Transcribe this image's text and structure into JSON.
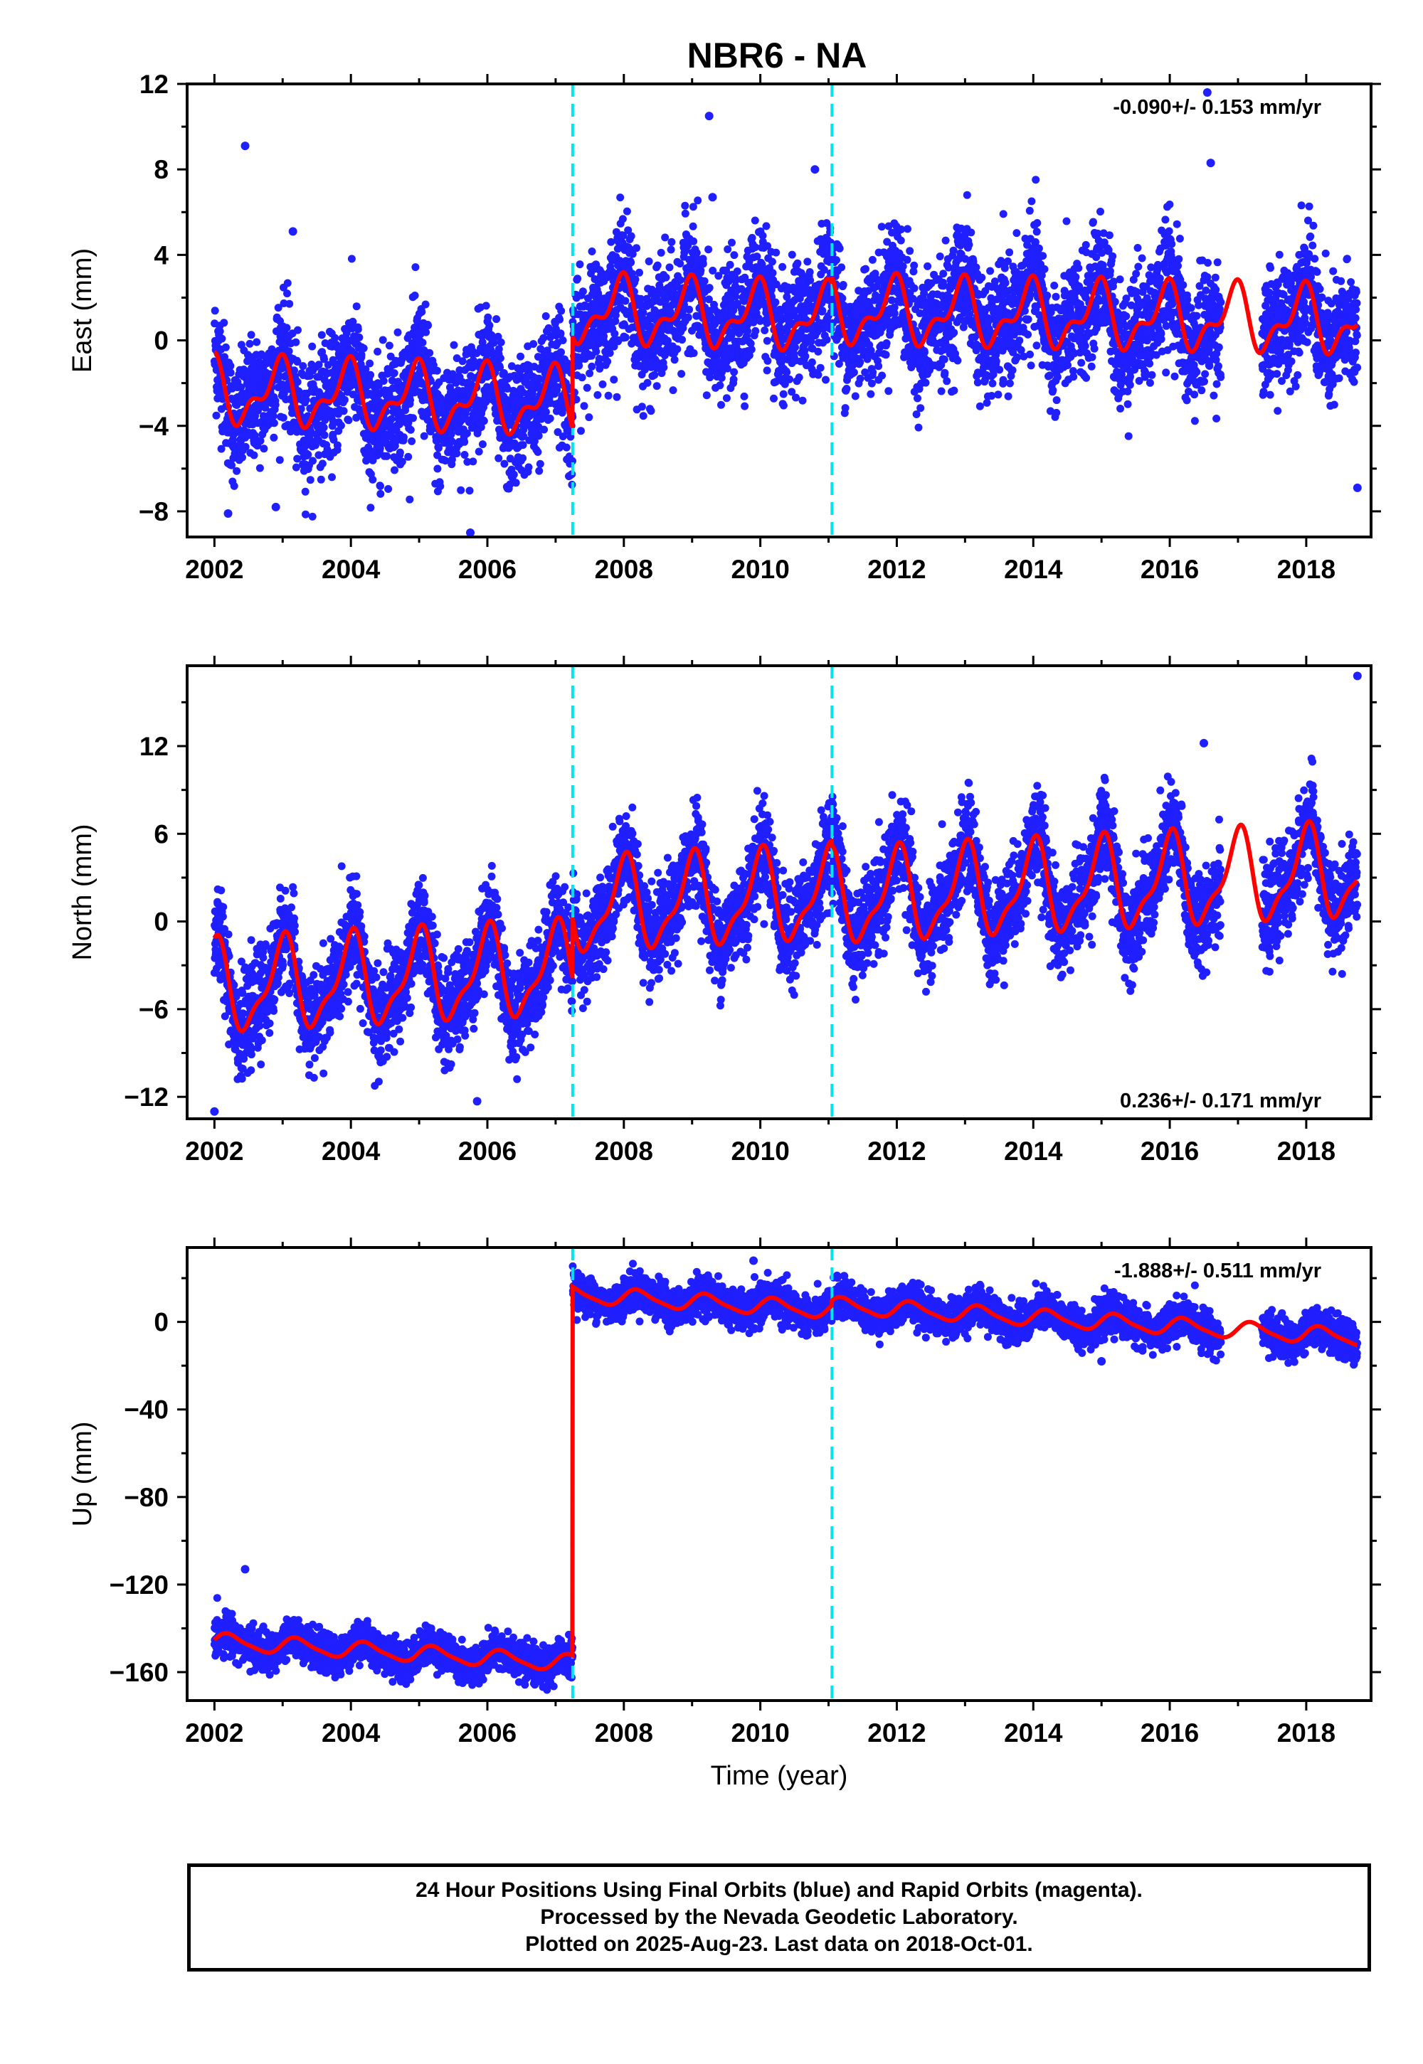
{
  "title": "NBR6 - NA",
  "colors": {
    "points": "#1f1fff",
    "model": "#ff0000",
    "breaks": "#00e5ee",
    "axes": "#000000"
  },
  "chart_data": [
    {
      "type": "scatter",
      "component": "East",
      "ylabel": "East (mm)",
      "xlabel": "",
      "xlim": [
        2001.6,
        2018.95
      ],
      "ylim": [
        -9.2,
        12
      ],
      "xticks": [
        2002,
        2004,
        2006,
        2008,
        2010,
        2012,
        2014,
        2016,
        2018
      ],
      "yticks": [
        -8,
        -4,
        0,
        4,
        8,
        12
      ],
      "rate": "-0.090+/- 0.153 mm/yr",
      "rate_position": "top-right",
      "break_lines": [
        2007.25,
        2011.05
      ],
      "gaps": [
        [
          2016.75,
          2017.35
        ]
      ],
      "model": {
        "segments": [
          {
            "start": 2002.0,
            "end": 2007.25,
            "offset": -2.4,
            "trend": -0.1
          },
          {
            "start": 2007.25,
            "end": 2011.05,
            "offset": 1.4,
            "trend": -0.1
          },
          {
            "start": 2011.05,
            "end": 2018.75,
            "offset": 1.35,
            "trend": -0.06
          }
        ],
        "annual_amp": 1.3,
        "annual_phase": 2.0,
        "semiannual_amp": 0.7,
        "semiannual_phase": 1.3
      },
      "scatter_sigma": 1.4,
      "outliers": [
        [
          2002.45,
          9.1
        ],
        [
          2003.15,
          5.1
        ],
        [
          2009.25,
          10.5
        ],
        [
          2009.3,
          6.7
        ],
        [
          2010.8,
          8.0
        ],
        [
          2016.55,
          11.6
        ],
        [
          2016.6,
          8.3
        ],
        [
          2005.75,
          -9.0
        ],
        [
          2002.2,
          -8.1
        ],
        [
          2002.9,
          -7.8
        ],
        [
          2018.75,
          -6.9
        ]
      ]
    },
    {
      "type": "scatter",
      "component": "North",
      "ylabel": "North (mm)",
      "xlabel": "",
      "xlim": [
        2001.6,
        2018.95
      ],
      "ylim": [
        -13.5,
        17.5
      ],
      "xticks": [
        2002,
        2004,
        2006,
        2008,
        2010,
        2012,
        2014,
        2016,
        2018
      ],
      "yticks": [
        -12,
        -6,
        0,
        6,
        12
      ],
      "rate": "0.236+/- 0.171 mm/yr",
      "rate_position": "bottom-right",
      "break_lines": [
        2007.25,
        2011.05
      ],
      "gaps": [
        [
          2016.75,
          2017.35
        ]
      ],
      "model": {
        "segments": [
          {
            "start": 2002.0,
            "end": 2007.25,
            "offset": -4.6,
            "trend": 0.24
          },
          {
            "start": 2007.25,
            "end": 2011.05,
            "offset": 0.9,
            "trend": 0.24
          },
          {
            "start": 2011.05,
            "end": 2018.75,
            "offset": 1.5,
            "trend": 0.24
          }
        ],
        "annual_amp": 2.9,
        "annual_phase": 1.6,
        "semiannual_amp": 1.0,
        "semiannual_phase": 0.6
      },
      "scatter_sigma": 1.6,
      "outliers": [
        [
          2018.75,
          16.8
        ],
        [
          2016.5,
          12.2
        ],
        [
          2002.0,
          -13.0
        ],
        [
          2005.85,
          -12.3
        ]
      ]
    },
    {
      "type": "scatter",
      "component": "Up",
      "ylabel": "Up (mm)",
      "xlabel": "Time (year)",
      "xlim": [
        2001.6,
        2018.95
      ],
      "ylim": [
        -173,
        34
      ],
      "xticks": [
        2002,
        2004,
        2006,
        2008,
        2010,
        2012,
        2014,
        2016,
        2018
      ],
      "yticks": [
        -160,
        -120,
        -80,
        -40,
        0
      ],
      "rate": "-1.888+/- 0.511 mm/yr",
      "rate_position": "top-right",
      "break_lines": [
        2007.25,
        2011.05
      ],
      "gaps": [
        [
          2016.75,
          2017.35
        ]
      ],
      "model": {
        "segments": [
          {
            "start": 2002.0,
            "end": 2007.25,
            "offset": -146,
            "trend": -1.9
          },
          {
            "start": 2007.25,
            "end": 2011.05,
            "offset": 12.5,
            "trend": -1.9
          },
          {
            "start": 2011.05,
            "end": 2018.75,
            "offset": 7.5,
            "trend": -1.9
          }
        ],
        "annual_amp": 3.6,
        "annual_phase": 0.2,
        "semiannual_amp": 0.8,
        "semiannual_phase": 0.0
      },
      "scatter_sigma": 4.2,
      "outliers": [
        [
          2002.45,
          -113.0
        ],
        [
          2009.9,
          28.0
        ],
        [
          2015.0,
          -18.0
        ]
      ]
    }
  ],
  "footer": {
    "line1": "24 Hour Positions Using Final Orbits (blue) and Rapid Orbits (magenta).",
    "line2": "Processed by the Nevada Geodetic Laboratory.",
    "line3": "Plotted on 2025-Aug-23. Last data on 2018-Oct-01."
  }
}
